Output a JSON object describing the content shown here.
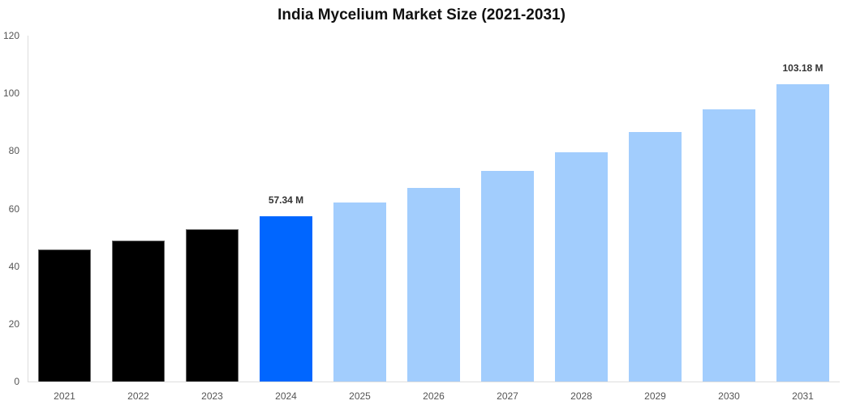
{
  "chart_data": {
    "type": "bar",
    "title": "India Mycelium Market Size (2021-2031)",
    "xlabel": "",
    "ylabel": "",
    "ylim": [
      0,
      120
    ],
    "yticks": [
      0,
      20,
      40,
      60,
      80,
      100,
      120
    ],
    "grid": false,
    "legend": null,
    "categories": [
      "2021",
      "2022",
      "2023",
      "2024",
      "2025",
      "2026",
      "2027",
      "2028",
      "2029",
      "2030",
      "2031"
    ],
    "values": [
      45.8,
      48.9,
      52.8,
      57.34,
      62.1,
      67.2,
      73.1,
      79.5,
      86.5,
      94.4,
      103.18
    ],
    "bar_kinds": [
      "historical",
      "historical",
      "historical",
      "current",
      "forecast",
      "forecast",
      "forecast",
      "forecast",
      "forecast",
      "forecast",
      "forecast"
    ],
    "annotations": [
      {
        "category": "2024",
        "text": "57.34 M"
      },
      {
        "category": "2031",
        "text": "103.18 M"
      }
    ],
    "colors": {
      "historical": "#000000",
      "current": "#0066ff",
      "forecast": "#a2cdfd"
    }
  }
}
